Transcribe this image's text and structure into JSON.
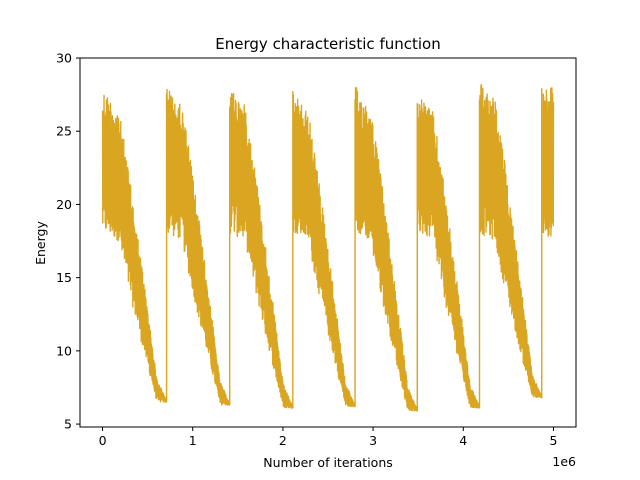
{
  "chart_data": {
    "type": "line",
    "title": "Energy characteristic function",
    "xlabel": "Number of iterations",
    "ylabel": "Energy",
    "x_offset_text": "1e6",
    "xlim": [
      -0.25,
      5.25
    ],
    "ylim": [
      4.8,
      30
    ],
    "x_scale_factor": 1000000,
    "xticks": [
      0,
      1,
      2,
      3,
      4,
      5
    ],
    "xtick_labels": [
      "0",
      "1",
      "2",
      "3",
      "4",
      "5"
    ],
    "yticks": [
      5,
      10,
      15,
      20,
      25,
      30
    ],
    "ytick_labels": [
      "5",
      "10",
      "15",
      "20",
      "25",
      "30"
    ],
    "grid": false,
    "series": [
      {
        "color": "#DAA520",
        "restart_points": [
          {
            "x": 0.0,
            "y": 28.0
          },
          {
            "x": 0.71,
            "y": 28.1
          },
          {
            "x": 1.41,
            "y": 28.2
          },
          {
            "x": 2.11,
            "y": 27.7
          },
          {
            "x": 2.8,
            "y": 28.1
          },
          {
            "x": 3.49,
            "y": 27.8
          },
          {
            "x": 4.18,
            "y": 28.7
          },
          {
            "x": 4.87,
            "y": 27.8
          }
        ],
        "cycle_minima": [
          {
            "x_end": 0.71,
            "y": 6.5
          },
          {
            "x_end": 1.41,
            "y": 6.3
          },
          {
            "x_end": 2.11,
            "y": 6.1
          },
          {
            "x_end": 2.8,
            "y": 6.2
          },
          {
            "x_end": 3.49,
            "y": 5.9
          },
          {
            "x_end": 4.18,
            "y": 6.1
          },
          {
            "x_end": 4.87,
            "y": 6.8
          }
        ],
        "x_end": 5.0,
        "final_band": [
          17.8,
          28.0
        ]
      }
    ]
  }
}
